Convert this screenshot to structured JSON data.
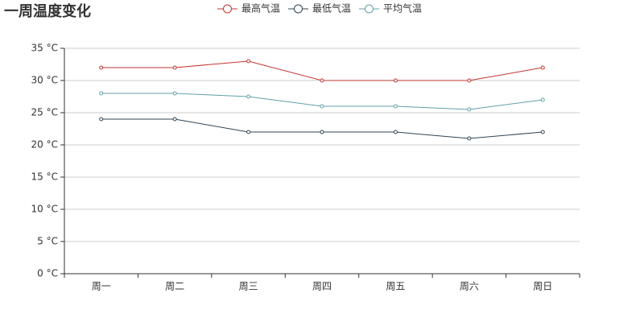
{
  "chart_data": {
    "type": "line",
    "title": "一周温度变化",
    "categories": [
      "周一",
      "周二",
      "周三",
      "周四",
      "周五",
      "周六",
      "周日"
    ],
    "series": [
      {
        "name": "最高气温",
        "color": "#c23531",
        "values": [
          32,
          32,
          33,
          30,
          30,
          30,
          32
        ]
      },
      {
        "name": "最低气温",
        "color": "#2f4554",
        "values": [
          24,
          24,
          22,
          22,
          22,
          21,
          22
        ]
      },
      {
        "name": "平均气温",
        "color": "#61a0a8",
        "values": [
          28,
          28,
          27.5,
          26,
          26,
          25.5,
          27
        ]
      }
    ],
    "ylim": [
      0,
      35
    ],
    "yticks": [
      {
        "value": 0,
        "label": "0 °C"
      },
      {
        "value": 5,
        "label": "5 °C"
      },
      {
        "value": 10,
        "label": "10 °C"
      },
      {
        "value": 15,
        "label": "15 °C"
      },
      {
        "value": 20,
        "label": "20 °C"
      },
      {
        "value": 25,
        "label": "25 °C"
      },
      {
        "value": 30,
        "label": "30 °C"
      },
      {
        "value": 35,
        "label": "35 °C"
      }
    ],
    "grid": true,
    "legend": "top"
  }
}
